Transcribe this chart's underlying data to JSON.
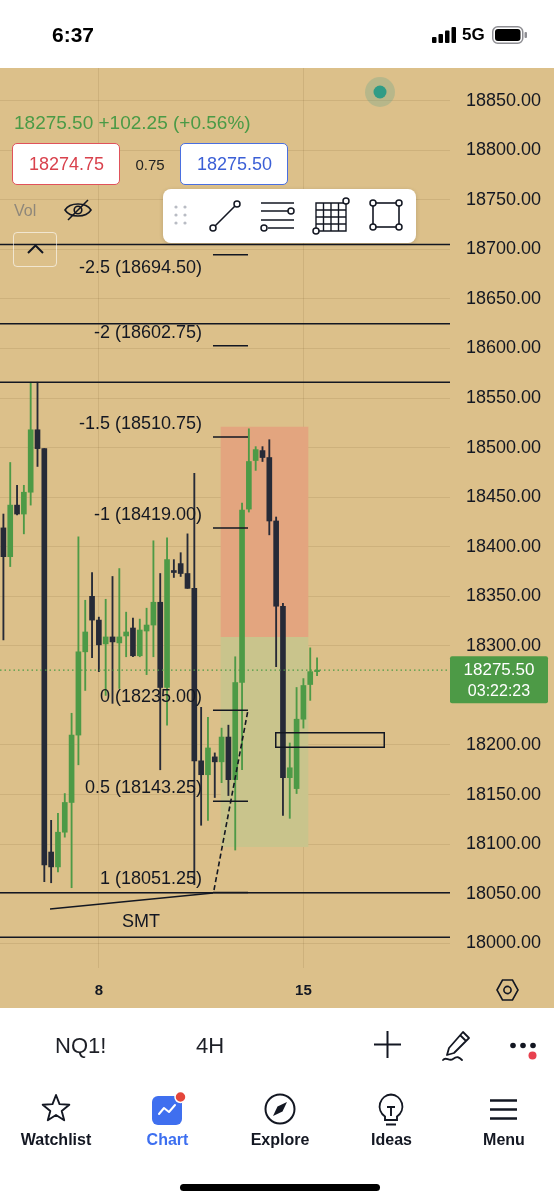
{
  "chart_data": {
    "type": "candlestick",
    "subtitle": "18275.50 +102.25 (+0.56%)",
    "categories": [
      null,
      null,
      null,
      null,
      null,
      null,
      null,
      null,
      null,
      null,
      null,
      null,
      null,
      null,
      "8",
      null,
      null,
      null,
      null,
      null,
      null,
      null,
      null,
      null,
      null,
      null,
      null,
      null,
      null,
      null,
      null,
      null,
      null,
      null,
      null,
      null,
      null,
      null,
      null,
      null,
      null,
      null,
      null,
      null,
      "15",
      null,
      null,
      null,
      null,
      null,
      null,
      null,
      null,
      null,
      null,
      null,
      null,
      null,
      null,
      null,
      null,
      null,
      null,
      null,
      null,
      null
    ],
    "ohlc": [
      [
        18419,
        18433,
        18306,
        18390
      ],
      [
        18390,
        18485,
        18380,
        18442
      ],
      [
        18442,
        18462,
        18432,
        18433
      ],
      [
        18433,
        18462,
        18413,
        18455
      ],
      [
        18455,
        18566,
        18442,
        18518
      ],
      [
        18518,
        18566,
        18481,
        18499
      ],
      [
        18499,
        18499,
        18062,
        18079
      ],
      [
        18092,
        18124,
        18061,
        18077
      ],
      [
        18077,
        18131,
        18072,
        18112
      ],
      [
        18112,
        18151,
        18107,
        18142
      ],
      [
        18142,
        18232,
        18056,
        18210
      ],
      [
        18210,
        18410,
        18180,
        18294
      ],
      [
        18294,
        18346,
        18255,
        18314
      ],
      [
        18350,
        18374,
        18288,
        18326
      ],
      [
        18326,
        18329,
        18274,
        18301
      ],
      [
        18302,
        18347,
        18250,
        18309
      ],
      [
        18309,
        18370,
        18242,
        18304
      ],
      [
        18303,
        18378,
        18257,
        18309
      ],
      [
        18310,
        18334,
        18289,
        18314
      ],
      [
        18318,
        18328,
        18289,
        18290
      ],
      [
        18290,
        18327,
        18289,
        18316
      ],
      [
        18315,
        18338,
        18271,
        18321
      ],
      [
        18321,
        18406,
        18289,
        18344
      ],
      [
        18344,
        18373,
        18175,
        18258
      ],
      [
        18258,
        18409,
        18220,
        18387
      ],
      [
        18376,
        18387,
        18369,
        18374
      ],
      [
        18383,
        18394,
        18370,
        18373
      ],
      [
        18373,
        18413,
        18358,
        18358
      ],
      [
        18358,
        18474,
        18059,
        18184
      ],
      [
        18184,
        18238,
        18119,
        18170
      ],
      [
        18170,
        18228,
        18124,
        18197
      ],
      [
        18188,
        18192,
        18147,
        18183
      ],
      [
        18183,
        18217,
        18162,
        18208
      ],
      [
        18208,
        18220,
        18149,
        18165
      ],
      [
        18165,
        18289,
        18094,
        18263
      ],
      [
        18263,
        18444,
        18175,
        18437
      ],
      [
        18438,
        18519,
        18435,
        18486
      ],
      [
        18487,
        18501,
        18477,
        18498
      ],
      [
        18497,
        18501,
        18486,
        18490
      ],
      [
        18490,
        18508,
        18412,
        18426
      ],
      [
        18426,
        18430,
        18279,
        18340
      ],
      [
        18340,
        18343,
        18129,
        18167
      ],
      [
        18167,
        18202,
        18126,
        18177
      ],
      [
        18156,
        18258,
        18151,
        18226
      ],
      [
        18226,
        18267,
        18217,
        18260
      ],
      [
        18261,
        18298,
        18245,
        18274
      ],
      [
        18274,
        18288,
        18270,
        18275.5
      ],
      null,
      null,
      null,
      null,
      null,
      null,
      null,
      null,
      null,
      null,
      null,
      null,
      null,
      null,
      null,
      null,
      null,
      null,
      null
    ],
    "colors": [
      "#262a37",
      "#4d9a46",
      "#262a37",
      "#4d9a46",
      "#4d9a46",
      "#262a37",
      "#262a37",
      "#262a37",
      "#4d9a46",
      "#4d9a46",
      "#4d9a46",
      "#4d9a46",
      "#4d9a46",
      "#262a37",
      "#262a37",
      "#4d9a46",
      "#262a37",
      "#4d9a46",
      "#4d9a46",
      "#262a37",
      "#4d9a46",
      "#4d9a46",
      "#4d9a46",
      "#262a37",
      "#4d9a46",
      "#262a37",
      "#262a37",
      "#262a37",
      "#262a37",
      "#262a37",
      "#4d9a46",
      "#262a37",
      "#4d9a46",
      "#262a37",
      "#4d9a46",
      "#4d9a46",
      "#4d9a46",
      "#4d9a46",
      "#262a37",
      "#262a37",
      "#262a37",
      "#262a37",
      "#4d9a46",
      "#4d9a46",
      "#4d9a46",
      "#4d9a46",
      "#4d9a46",
      null,
      null,
      null,
      null,
      null,
      null,
      null,
      null,
      null,
      null,
      null,
      null,
      null,
      null,
      null,
      null,
      null,
      null,
      null
    ],
    "ylim": [
      17975,
      18883
    ],
    "yticks": [
      {
        "value": 18000,
        "label": "18000.00"
      },
      {
        "value": 18050,
        "label": "18050.00"
      },
      {
        "value": 18100,
        "label": "18100.00"
      },
      {
        "value": 18150,
        "label": "18150.00"
      },
      {
        "value": 18200,
        "label": "18200.00"
      },
      {
        "value": 18300,
        "label": "18300.00"
      },
      {
        "value": 18350,
        "label": "18350.00"
      },
      {
        "value": 18400,
        "label": "18400.00"
      },
      {
        "value": 18450,
        "label": "18450.00"
      },
      {
        "value": 18500,
        "label": "18500.00"
      },
      {
        "value": 18550,
        "label": "18550.00"
      },
      {
        "value": 18600,
        "label": "18600.00"
      },
      {
        "value": 18650,
        "label": "18650.00"
      },
      {
        "value": 18700,
        "label": "18700.00"
      },
      {
        "value": 18750,
        "label": "18750.00"
      },
      {
        "value": 18800,
        "label": "18800.00"
      },
      {
        "value": 18850,
        "label": "18850.00"
      }
    ],
    "grid": true,
    "bands": [
      {
        "axis": "y",
        "from": 18309,
        "to": 18521,
        "color": "#e3a57f"
      },
      {
        "axis": "y",
        "from": 18097,
        "to": 18309,
        "color": "#c9c48c"
      }
    ],
    "ref_lines": [
      {
        "axis": "y",
        "value": 18705
      },
      {
        "axis": "y",
        "value": 18625
      },
      {
        "axis": "y",
        "value": 18566
      },
      {
        "axis": "y",
        "value": 18051
      },
      {
        "axis": "y",
        "value": 18006
      },
      {
        "axis": "y",
        "value": 18694.5,
        "label": "-2.5 (18694.50)"
      },
      {
        "axis": "y",
        "value": 18602.75,
        "label": "-2 (18602.75)"
      },
      {
        "axis": "y",
        "value": 18510.75,
        "label": "-1.5 (18510.75)"
      },
      {
        "axis": "y",
        "value": 18419,
        "label": "-1 (18419.00)"
      },
      {
        "axis": "y",
        "value": 18235,
        "label": "0 (18235.00)"
      },
      {
        "axis": "y",
        "value": 18143.25,
        "label": "0.5 (18143.25)"
      },
      {
        "axis": "y",
        "value": 18051.25,
        "label": "1 (18051.25)"
      },
      {
        "axis": "y",
        "value": 18275.5,
        "label": "18275.50",
        "color": "#4d9a46",
        "line_style": "dotted"
      }
    ],
    "annotations": [
      "6:37",
      "5G",
      "18274.75",
      "0.75",
      "18275.50",
      "Vol",
      "03:22:23",
      "NQ1!",
      "4H",
      "Watchlist",
      "Chart",
      "Explore",
      "Ideas",
      "Menu",
      "SMT"
    ]
  }
}
